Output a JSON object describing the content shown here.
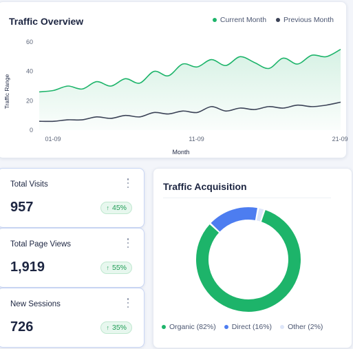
{
  "overview": {
    "title": "Traffic Overview",
    "legend": [
      {
        "label": "Current Month",
        "color": "#1db46a"
      },
      {
        "label": "Previous Month",
        "color": "#3b4256"
      }
    ]
  },
  "chart_data": {
    "type": "line",
    "title": "Traffic Overview",
    "xlabel": "Month",
    "ylabel": "Traffic Range",
    "ylim": [
      0,
      60
    ],
    "yticks": [
      "0",
      "20",
      "40",
      "60"
    ],
    "xticks": [
      "01-09",
      "11-09",
      "21-09"
    ],
    "grid": false,
    "legend_position": "top-right",
    "x": [
      "01-09",
      "02-09",
      "03-09",
      "04-09",
      "05-09",
      "06-09",
      "07-09",
      "08-09",
      "09-09",
      "10-09",
      "11-09",
      "12-09",
      "13-09",
      "14-09",
      "15-09",
      "16-09",
      "17-09",
      "18-09",
      "19-09",
      "20-09",
      "21-09",
      "22-09"
    ],
    "series": [
      {
        "name": "Current Month",
        "color": "#1db46a",
        "values": [
          26,
          27,
          30,
          28,
          33,
          30,
          35,
          32,
          40,
          37,
          45,
          43,
          48,
          44,
          50,
          46,
          42,
          49,
          45,
          51,
          50,
          55
        ]
      },
      {
        "name": "Previous Month",
        "color": "#3b4256",
        "values": [
          6,
          6,
          7,
          7,
          9,
          8,
          10,
          9,
          12,
          11,
          13,
          12,
          16,
          13,
          15,
          14,
          16,
          15,
          17,
          16,
          17,
          19
        ]
      }
    ]
  },
  "kpis": [
    {
      "label": "Total Visits",
      "value": "957",
      "change": "45%"
    },
    {
      "label": "Total Page Views",
      "value": "1,919",
      "change": "55%"
    },
    {
      "label": "New Sessions",
      "value": "726",
      "change": "35%"
    }
  ],
  "acquisition": {
    "title": "Traffic Acquisition",
    "chart_data": {
      "type": "pie",
      "categories": [
        "Organic",
        "Direct",
        "Other"
      ],
      "values": [
        82,
        16,
        2
      ],
      "colors": [
        "#1db46a",
        "#4d7df0",
        "#dde6f9"
      ],
      "legend_position": "bottom"
    },
    "legend": [
      "Organic (82%)",
      "Direct (16%)",
      "Other (2%)"
    ]
  }
}
